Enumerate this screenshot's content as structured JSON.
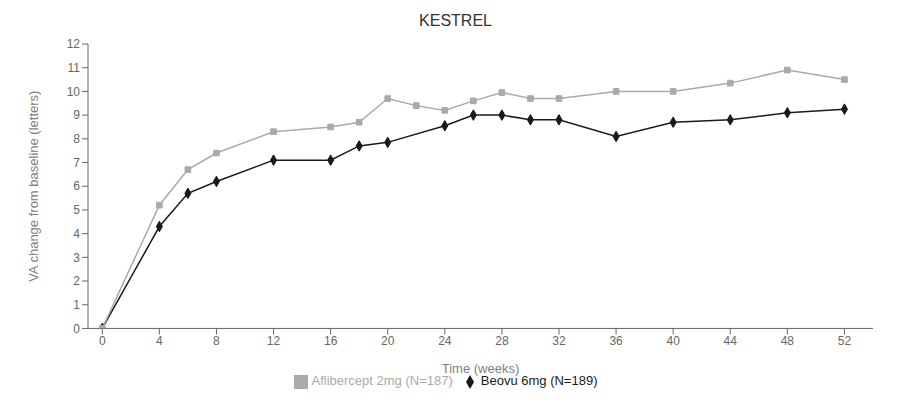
{
  "chart_data": {
    "type": "line",
    "title": "KESTREL",
    "x_label": "Time (weeks)",
    "y_label": "VA change from baseline (letters)",
    "xlim": [
      -1,
      54
    ],
    "ylim": [
      0,
      12
    ],
    "xticks": [
      0,
      4,
      8,
      12,
      16,
      20,
      24,
      28,
      32,
      36,
      40,
      44,
      48,
      52
    ],
    "yticks": [
      0,
      1,
      2,
      3,
      4,
      5,
      6,
      7,
      8,
      9,
      10,
      11,
      12
    ],
    "grid": false,
    "legend": "bottom",
    "series": [
      {
        "name": "Beovu 6mg (N=189)",
        "color": "#1a1a1a",
        "marker": "diamond",
        "x": [
          0,
          4,
          6,
          8,
          12,
          16,
          18,
          20,
          24,
          26,
          28,
          30,
          32,
          36,
          40,
          44,
          48,
          52
        ],
        "values": [
          0,
          4.3,
          5.7,
          6.2,
          7.1,
          7.1,
          7.7,
          7.85,
          8.55,
          9.0,
          9.0,
          8.8,
          8.8,
          8.1,
          8.7,
          8.8,
          9.1,
          9.25
        ]
      },
      {
        "name": "Aflibercept 2mg (N=187)",
        "color": "#aaaaaa",
        "marker": "square",
        "x": [
          0,
          4,
          6,
          8,
          12,
          16,
          18,
          20,
          22,
          24,
          26,
          28,
          30,
          32,
          36,
          40,
          44,
          48,
          52
        ],
        "values": [
          0,
          5.2,
          6.7,
          7.4,
          8.3,
          8.5,
          8.7,
          9.7,
          9.4,
          9.2,
          9.6,
          9.95,
          9.7,
          9.7,
          10.0,
          10.0,
          10.35,
          10.9,
          10.5
        ]
      }
    ]
  }
}
